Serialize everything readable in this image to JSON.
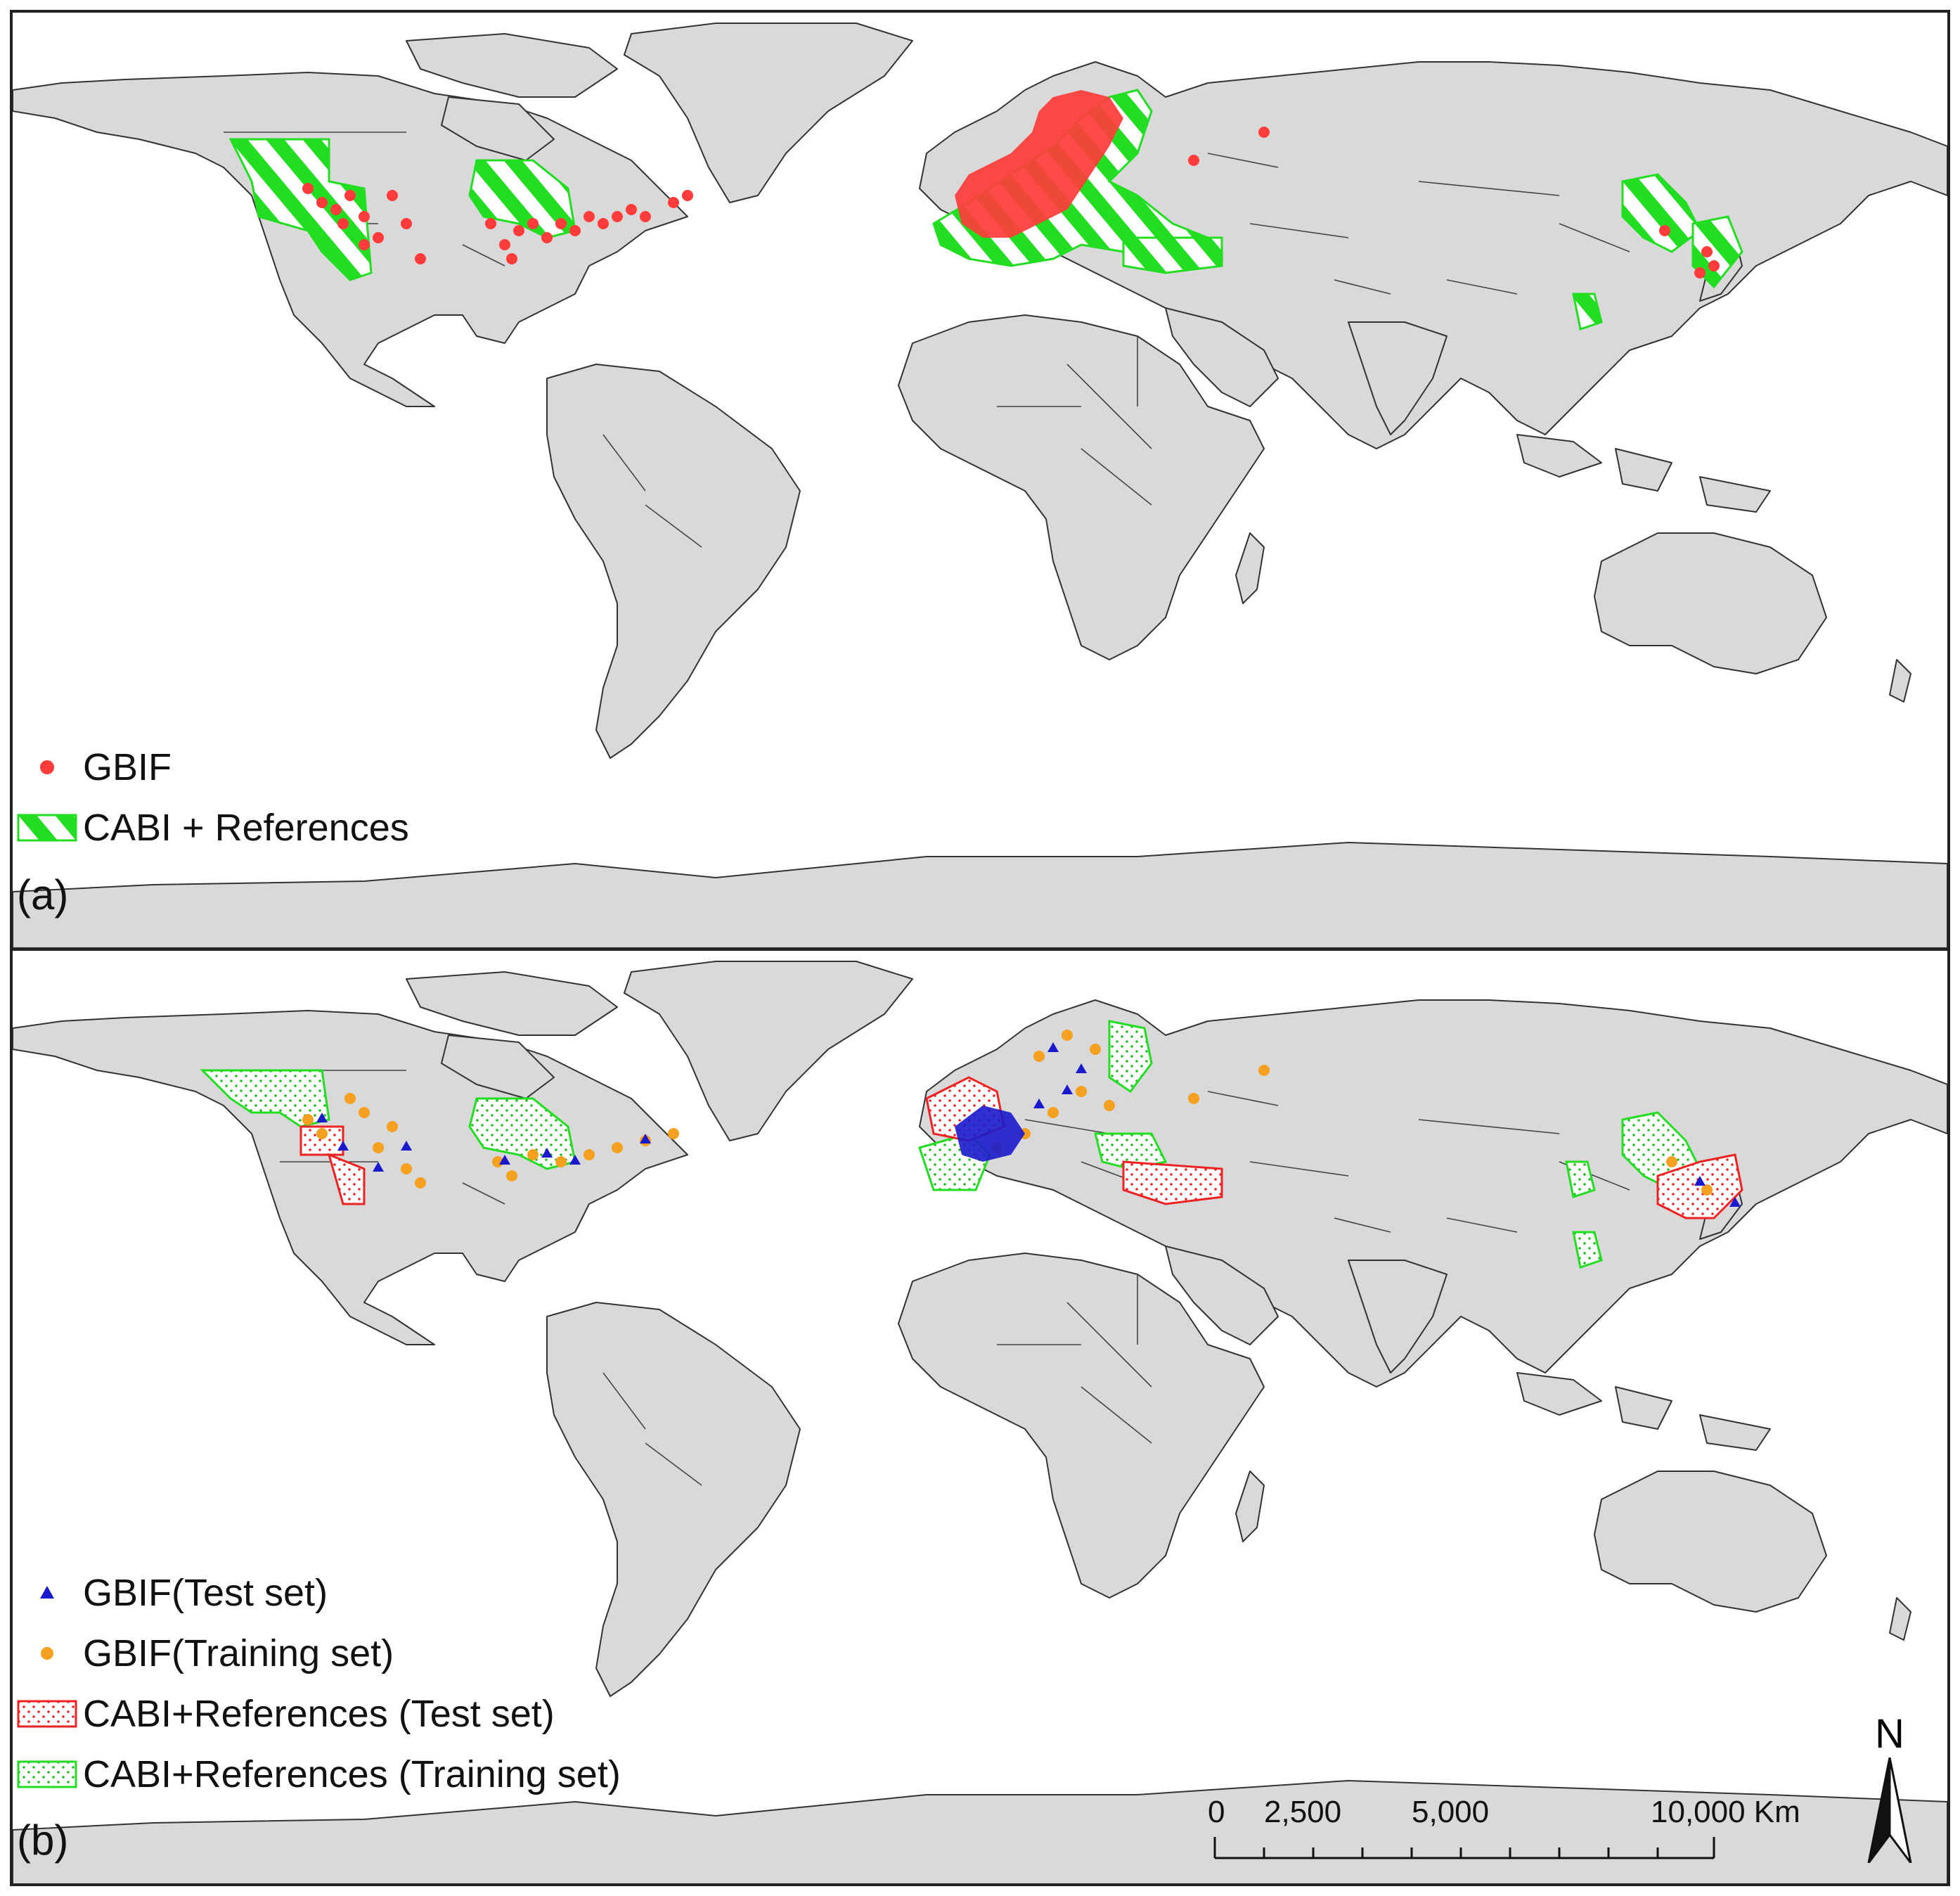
{
  "panel_a": {
    "label": "(a)",
    "legend": [
      {
        "symbol": "red-dot",
        "text": "GBIF"
      },
      {
        "symbol": "green-hatch",
        "text": "CABI + References"
      }
    ]
  },
  "panel_b": {
    "label": "(b)",
    "legend": [
      {
        "symbol": "blue-triangle",
        "text": "GBIF(Test set)"
      },
      {
        "symbol": "orange-dot",
        "text": "GBIF(Training set)"
      },
      {
        "symbol": "red-dotted-polygon",
        "text": "CABI+References (Test set)"
      },
      {
        "symbol": "green-dotted-polygon",
        "text": "CABI+References (Training set)"
      }
    ],
    "scale_bar": {
      "ticks": [
        "0",
        "2,500",
        "5,000",
        "10,000 Km"
      ]
    },
    "north_arrow": "N"
  },
  "colors": {
    "gbif": "#ff3b3b",
    "cabi": "#22dd22",
    "test_points": "#1a1acc",
    "training_points": "#f4a020",
    "test_polygons": "#ee2222",
    "land": "#d9d9d9"
  }
}
